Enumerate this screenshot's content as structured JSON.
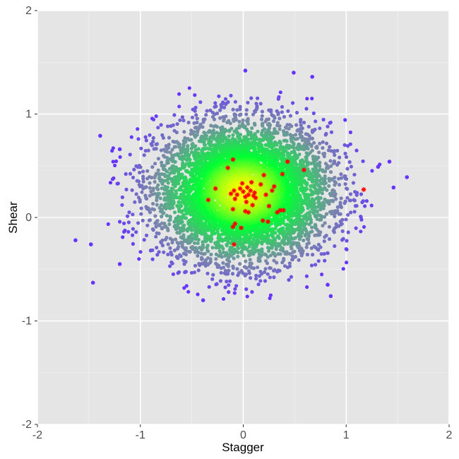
{
  "chart_data": {
    "type": "scatter",
    "xlabel": "Stagger",
    "ylabel": "Shear",
    "xlim": [
      -2,
      2
    ],
    "ylim": [
      -2,
      2
    ],
    "x_ticks": [
      "-2",
      "-1",
      "0",
      "1",
      "2"
    ],
    "y_ticks": [
      "-2",
      "-1",
      "0",
      "1",
      "2"
    ],
    "x_tick_values": [
      -2,
      -1,
      0,
      1,
      2
    ],
    "y_tick_values": [
      -2,
      -1,
      0,
      1,
      2
    ],
    "grid": true,
    "legend": "none",
    "colors": {
      "panel": "#e5e5e5",
      "grid_major": "#ffffff",
      "grid_minor": "#f2f2f2",
      "density_high": "#ffff00",
      "density_mid": "#00ff33",
      "density_low": "#7a8aa8",
      "density_outlier": "#6633ff",
      "highlight": "#ff0000"
    },
    "density_cloud": {
      "center": [
        0.0,
        0.25
      ],
      "sd": [
        0.42,
        0.33
      ],
      "approx_points": 6000,
      "outliers": [
        [
          -1.63,
          -0.22
        ],
        [
          -1.48,
          -0.26
        ],
        [
          -1.46,
          -0.63
        ],
        [
          -1.39,
          0.79
        ],
        [
          -1.2,
          0.66
        ],
        [
          0.02,
          1.42
        ],
        [
          0.49,
          1.4
        ],
        [
          0.67,
          1.36
        ],
        [
          1.31,
          0.49
        ],
        [
          1.42,
          0.54
        ],
        [
          1.59,
          0.39
        ],
        [
          1.46,
          0.29
        ],
        [
          0.85,
          -0.76
        ],
        [
          0.82,
          -0.65
        ],
        [
          -0.39,
          -0.8
        ],
        [
          -1.2,
          -0.45
        ]
      ]
    },
    "highlight_series": {
      "marker": "asterisk",
      "points": [
        [
          -0.1,
          0.56
        ],
        [
          -0.15,
          0.48
        ],
        [
          -0.27,
          0.28
        ],
        [
          -0.34,
          0.17
        ],
        [
          -0.12,
          0.23
        ],
        [
          -0.09,
          0.26
        ],
        [
          -0.06,
          0.22
        ],
        [
          -0.03,
          0.28
        ],
        [
          -0.01,
          0.33
        ],
        [
          0.0,
          0.25
        ],
        [
          0.02,
          0.2
        ],
        [
          0.04,
          0.29
        ],
        [
          0.05,
          0.22
        ],
        [
          0.07,
          0.26
        ],
        [
          0.08,
          0.34
        ],
        [
          0.1,
          0.21
        ],
        [
          0.11,
          0.24
        ],
        [
          0.12,
          0.19
        ],
        [
          -0.08,
          0.18
        ],
        [
          0.03,
          0.15
        ],
        [
          -0.1,
          0.08
        ],
        [
          0.02,
          0.06
        ],
        [
          0.05,
          0.05
        ],
        [
          0.09,
          0.12
        ],
        [
          -0.08,
          -0.06
        ],
        [
          -0.1,
          -0.09
        ],
        [
          -0.02,
          -0.1
        ],
        [
          0.19,
          -0.03
        ],
        [
          0.24,
          -0.04
        ],
        [
          0.25,
          0.11
        ],
        [
          0.33,
          0.05
        ],
        [
          0.36,
          0.07
        ],
        [
          0.39,
          0.07
        ],
        [
          0.28,
          0.26
        ],
        [
          0.3,
          0.3
        ],
        [
          0.2,
          0.41
        ],
        [
          0.38,
          0.42
        ],
        [
          0.43,
          0.54
        ],
        [
          0.59,
          0.46
        ],
        [
          1.17,
          0.27
        ],
        [
          -0.09,
          -0.26
        ],
        [
          0.17,
          0.32
        ],
        [
          0.22,
          0.22
        ]
      ]
    }
  }
}
